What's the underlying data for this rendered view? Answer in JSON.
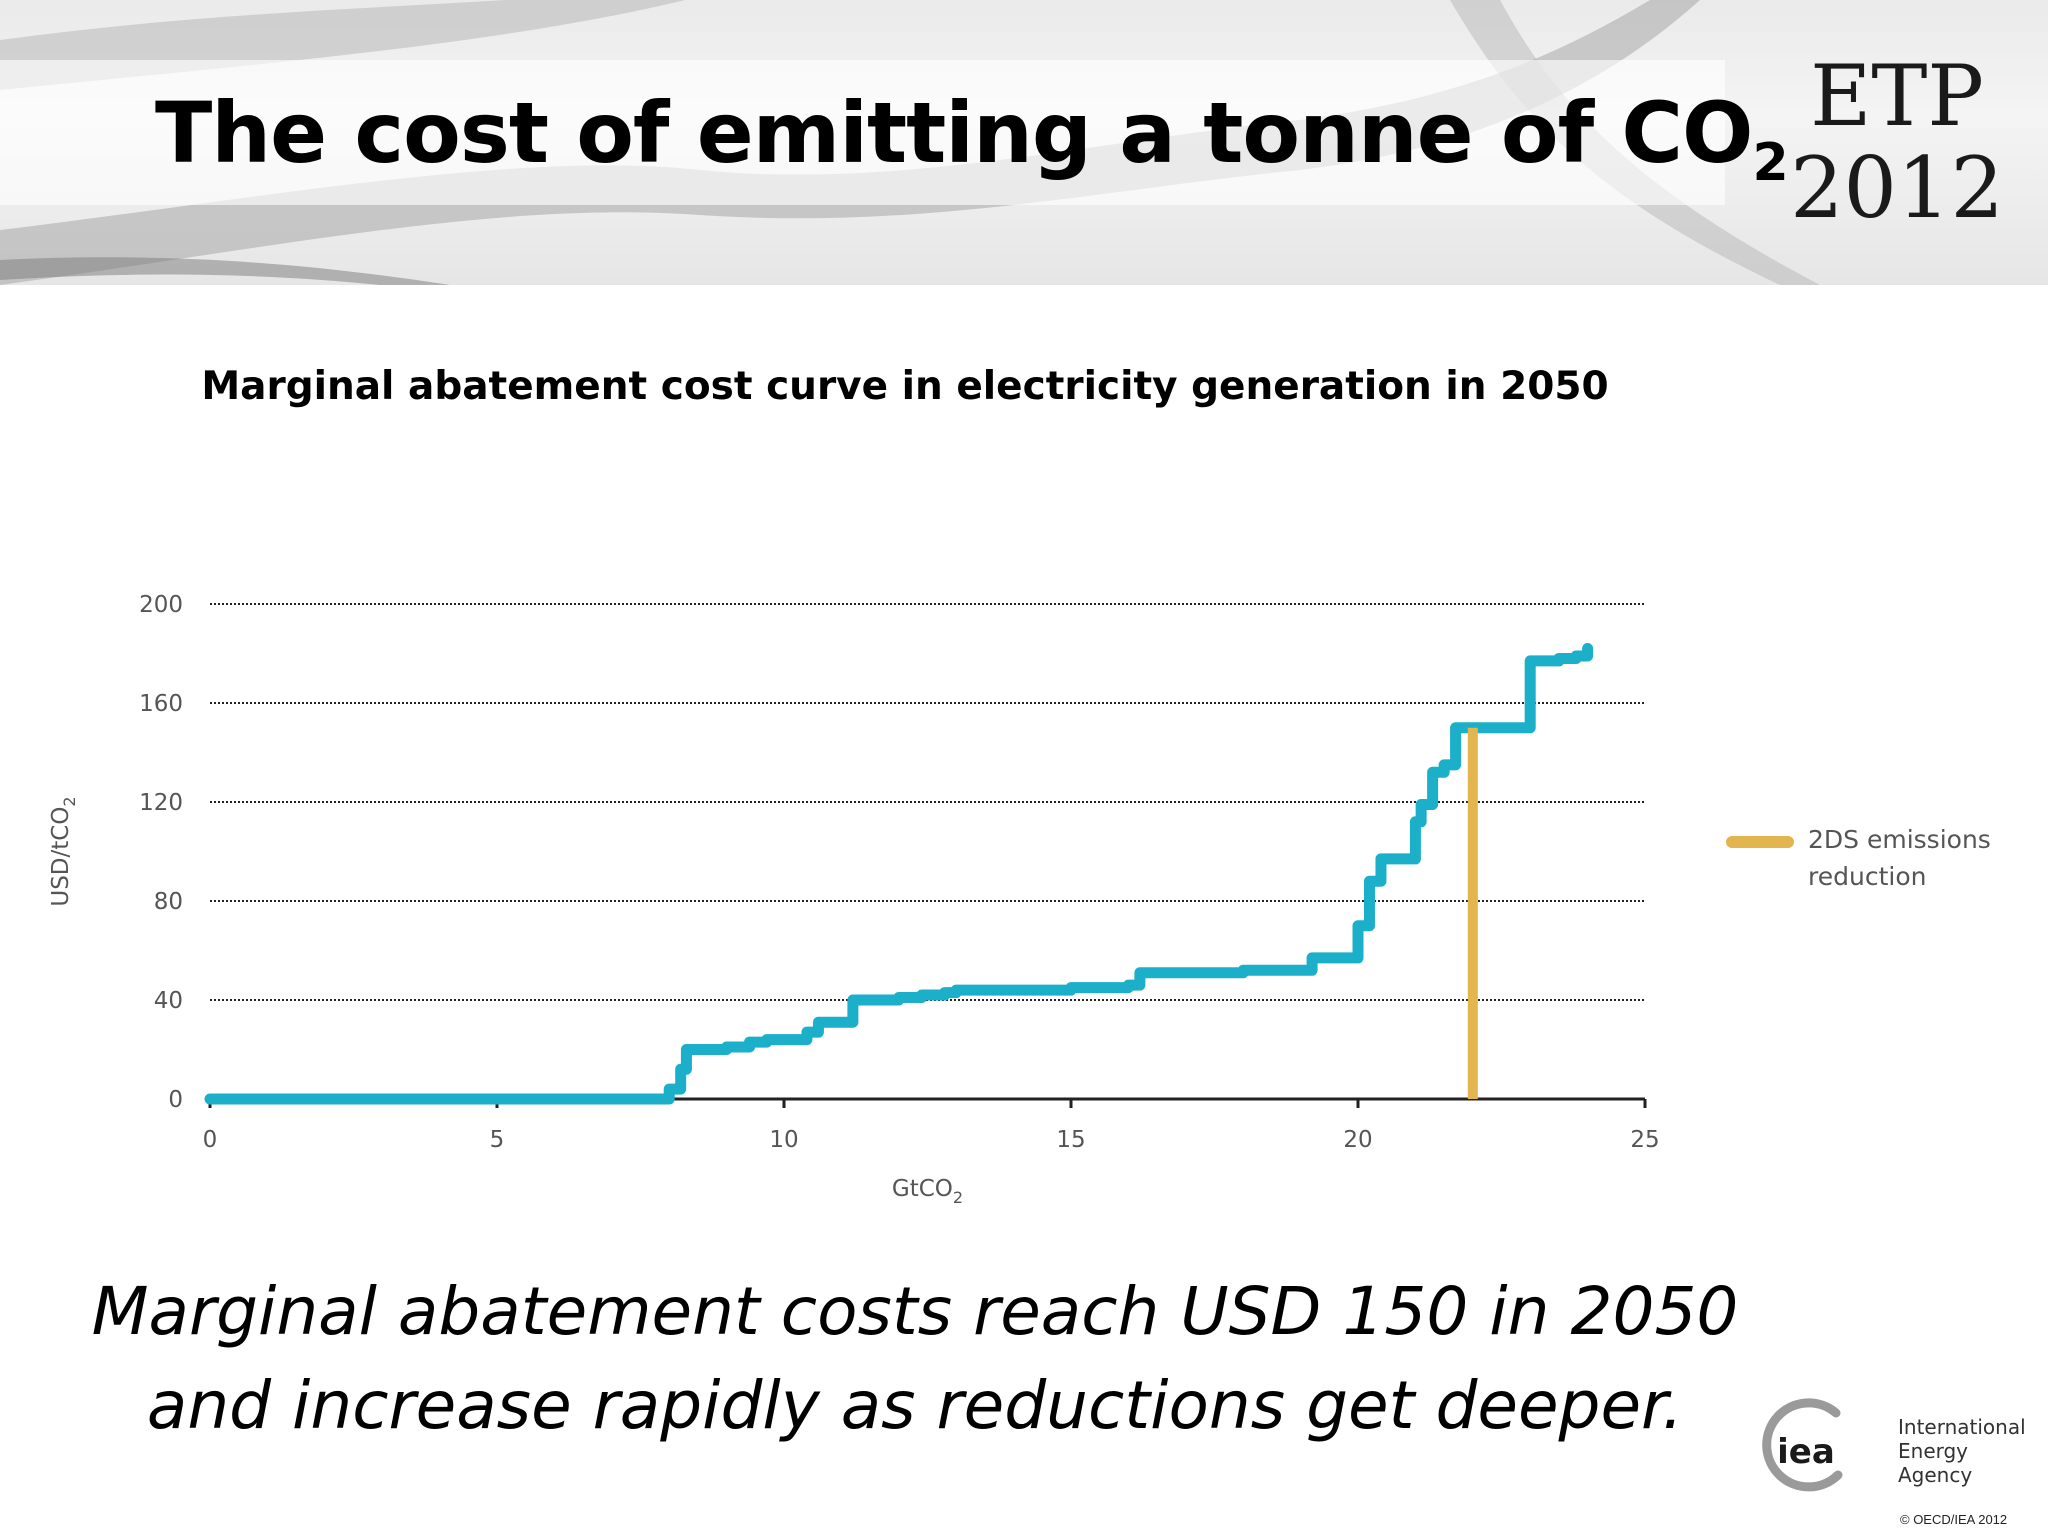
{
  "slide": {
    "title_main": "The cost of emitting a tonne of CO",
    "title_sub": "2",
    "logo_line1": "ETP",
    "logo_line2": "2012",
    "chart_title": "Marginal abatement cost curve in electricity generation in 2050",
    "conclusion_line1": "Marginal abatement costs reach USD 150 in 2050",
    "conclusion_line2": "and increase rapidly as reductions get deeper.",
    "iea_mark": "iea",
    "iea_name_line1": "International",
    "iea_name_line2": "Energy Agency",
    "copyright": "© OECD/IEA 2012"
  },
  "colors": {
    "curve": "#1BAFC9",
    "marker": "#E2B54F",
    "grid": "#222222",
    "axis": "#222222"
  },
  "chart_data": {
    "type": "line",
    "title": "Marginal abatement cost curve in electricity generation in 2050",
    "xlabel": "GtCO",
    "xlabel_sub": "2",
    "ylabel": "USD/tCO",
    "ylabel_sub": "2",
    "xlim": [
      0,
      25
    ],
    "ylim": [
      0,
      200
    ],
    "xticks": [
      0,
      5,
      10,
      15,
      20,
      25
    ],
    "yticks": [
      0,
      40,
      80,
      120,
      160,
      200
    ],
    "grid": "horizontal dotted",
    "step": true,
    "series": [
      {
        "x": [
          0,
          7.9,
          8.0,
          8.2,
          8.3,
          8.6,
          9.0,
          9.4,
          9.7,
          10.0,
          10.4,
          10.6,
          11.0,
          11.2,
          11.6,
          12.0,
          12.4,
          12.8,
          13.0,
          14.0,
          15.0,
          15.6,
          16.0,
          16.2,
          17.0,
          18.0,
          19.0,
          19.2,
          19.8,
          20.0,
          20.2,
          20.4,
          20.8,
          21.0,
          21.1,
          21.3,
          21.5,
          21.7,
          21.8,
          22.0,
          22.9,
          23.0,
          23.3,
          23.5,
          23.8,
          24.0
        ],
        "y": [
          0,
          0,
          4,
          12,
          20,
          20,
          21,
          23,
          24,
          24,
          27,
          31,
          31,
          40,
          40,
          41,
          42,
          43,
          44,
          44,
          45,
          45,
          46,
          51,
          51,
          52,
          52,
          57,
          57,
          70,
          88,
          97,
          97,
          112,
          119,
          132,
          135,
          150,
          150,
          150,
          150,
          177,
          177,
          178,
          179,
          182
        ]
      }
    ],
    "annotation": {
      "type": "vertical line",
      "legend": "2DS emissions reduction",
      "legend_position": "right",
      "x": 22.0,
      "y_from": 0,
      "y_to": 150
    }
  }
}
